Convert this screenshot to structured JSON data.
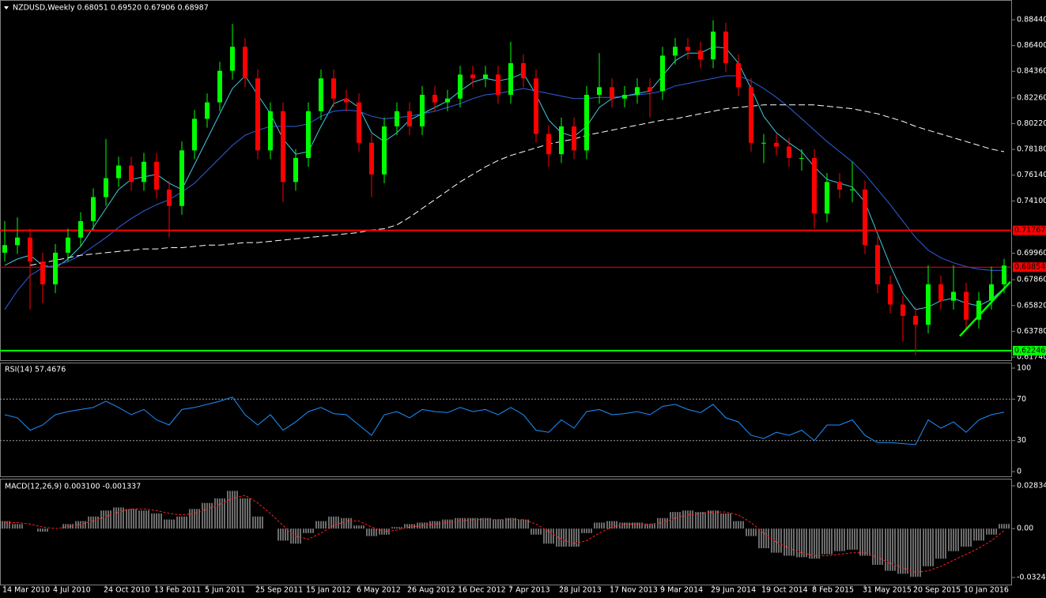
{
  "chart_data": [
    {
      "type": "candlestick",
      "title": "NZDUSD,Weekly  0.68051 0.69520 0.67906 0.68987",
      "categories": [
        "14 Mar 2010",
        null,
        null,
        null,
        "4 Jul 2010",
        null,
        null,
        null,
        "24 Oct 2010",
        null,
        null,
        null,
        "13 Feb 2011",
        null,
        null,
        null,
        "5 Jun 2011",
        null,
        null,
        null,
        "25 Sep 2011",
        null,
        null,
        null,
        "15 Jan 2012",
        null,
        null,
        null,
        "6 May 2012",
        null,
        null,
        null,
        "26 Aug 2012",
        null,
        null,
        null,
        "16 Dec 2012",
        null,
        null,
        null,
        "7 Apr 2013",
        null,
        null,
        null,
        "28 Jul 2013",
        null,
        null,
        null,
        "17 Nov 2013",
        null,
        null,
        null,
        "9 Mar 2014",
        null,
        null,
        null,
        "29 Jun 2014",
        null,
        null,
        null,
        "19 Oct 2014",
        null,
        null,
        null,
        "8 Feb 2015",
        null,
        null,
        null,
        "31 May 2015",
        null,
        null,
        null,
        "20 Sep 2015",
        null,
        null,
        null,
        "10 Jan 2016",
        null,
        null,
        null
      ],
      "open": [
        0.7,
        0.706,
        0.712,
        0.693,
        0.675,
        0.7,
        0.712,
        0.725,
        0.744,
        0.759,
        0.769,
        0.756,
        0.772,
        0.75,
        0.737,
        0.781,
        0.806,
        0.819,
        0.844,
        0.863,
        0.838,
        0.781,
        0.812,
        0.756,
        0.775,
        0.812,
        0.838,
        0.822,
        0.819,
        0.787,
        0.762,
        0.8,
        0.812,
        0.8,
        0.825,
        0.819,
        0.822,
        0.841,
        0.838,
        0.841,
        0.825,
        0.85,
        0.838,
        0.794,
        0.778,
        0.8,
        0.781,
        0.825,
        0.831,
        0.822,
        0.825,
        0.831,
        0.828,
        0.856,
        0.863,
        0.86,
        0.853,
        0.875,
        0.85,
        0.831,
        0.787,
        0.787,
        0.784,
        0.775,
        0.775,
        0.731,
        0.756,
        0.75,
        0.75,
        0.706,
        0.675,
        0.659,
        0.65,
        0.643,
        0.675,
        0.662,
        0.669,
        0.647,
        0.662,
        0.675
      ],
      "high": [
        0.725,
        0.728,
        0.719,
        0.7,
        0.707,
        0.719,
        0.732,
        0.751,
        0.79,
        0.776,
        0.776,
        0.779,
        0.779,
        0.757,
        0.788,
        0.813,
        0.826,
        0.851,
        0.881,
        0.87,
        0.845,
        0.819,
        0.819,
        0.782,
        0.819,
        0.845,
        0.845,
        0.829,
        0.826,
        0.794,
        0.807,
        0.819,
        0.819,
        0.832,
        0.832,
        0.829,
        0.848,
        0.848,
        0.848,
        0.848,
        0.867,
        0.857,
        0.845,
        0.801,
        0.807,
        0.807,
        0.832,
        0.858,
        0.838,
        0.832,
        0.838,
        0.838,
        0.863,
        0.87,
        0.87,
        0.867,
        0.884,
        0.882,
        0.857,
        0.838,
        0.794,
        0.794,
        0.791,
        0.782,
        0.782,
        0.763,
        0.763,
        0.772,
        0.757,
        0.713,
        0.682,
        0.666,
        0.657,
        0.69,
        0.682,
        0.69,
        0.676,
        0.669,
        0.689,
        0.6952
      ],
      "low": [
        0.693,
        0.699,
        0.655,
        0.66,
        0.668,
        0.693,
        0.705,
        0.718,
        0.737,
        0.752,
        0.749,
        0.749,
        0.743,
        0.712,
        0.73,
        0.774,
        0.799,
        0.812,
        0.837,
        0.831,
        0.774,
        0.774,
        0.74,
        0.749,
        0.768,
        0.805,
        0.815,
        0.812,
        0.78,
        0.744,
        0.755,
        0.793,
        0.793,
        0.793,
        0.812,
        0.812,
        0.815,
        0.831,
        0.831,
        0.818,
        0.818,
        0.831,
        0.787,
        0.768,
        0.771,
        0.774,
        0.774,
        0.818,
        0.815,
        0.815,
        0.818,
        0.807,
        0.821,
        0.849,
        0.853,
        0.846,
        0.846,
        0.843,
        0.824,
        0.78,
        0.771,
        0.777,
        0.768,
        0.765,
        0.719,
        0.724,
        0.743,
        0.74,
        0.699,
        0.668,
        0.652,
        0.63,
        0.619,
        0.636,
        0.655,
        0.655,
        0.64,
        0.64,
        0.655,
        0.668
      ],
      "close": [
        0.706,
        0.712,
        0.693,
        0.675,
        0.7,
        0.712,
        0.725,
        0.744,
        0.759,
        0.769,
        0.756,
        0.772,
        0.75,
        0.737,
        0.781,
        0.806,
        0.819,
        0.844,
        0.863,
        0.838,
        0.781,
        0.812,
        0.756,
        0.775,
        0.812,
        0.838,
        0.822,
        0.819,
        0.787,
        0.762,
        0.8,
        0.812,
        0.8,
        0.825,
        0.819,
        0.822,
        0.841,
        0.838,
        0.841,
        0.825,
        0.85,
        0.838,
        0.794,
        0.778,
        0.8,
        0.781,
        0.825,
        0.831,
        0.822,
        0.825,
        0.831,
        0.828,
        0.856,
        0.863,
        0.86,
        0.853,
        0.875,
        0.85,
        0.831,
        0.787,
        0.787,
        0.784,
        0.775,
        0.775,
        0.731,
        0.756,
        0.75,
        0.75,
        0.706,
        0.675,
        0.659,
        0.65,
        0.643,
        0.675,
        0.662,
        0.669,
        0.647,
        0.662,
        0.675,
        0.68987
      ],
      "up_color": "#00ff00",
      "down_color": "#ff0000",
      "lines": [
        {
          "color": "#40c8e0",
          "dashed": false,
          "values": [
            0.69,
            0.695,
            0.698,
            0.69,
            0.688,
            0.695,
            0.705,
            0.72,
            0.735,
            0.75,
            0.758,
            0.76,
            0.762,
            0.755,
            0.75,
            0.77,
            0.79,
            0.81,
            0.83,
            0.84,
            0.825,
            0.81,
            0.79,
            0.778,
            0.78,
            0.8,
            0.818,
            0.822,
            0.815,
            0.795,
            0.788,
            0.795,
            0.805,
            0.81,
            0.815,
            0.82,
            0.828,
            0.835,
            0.838,
            0.836,
            0.838,
            0.842,
            0.825,
            0.805,
            0.795,
            0.792,
            0.8,
            0.815,
            0.822,
            0.824,
            0.826,
            0.828,
            0.84,
            0.852,
            0.858,
            0.858,
            0.863,
            0.862,
            0.85,
            0.83,
            0.808,
            0.795,
            0.787,
            0.78,
            0.768,
            0.758,
            0.755,
            0.752,
            0.74,
            0.715,
            0.69,
            0.668,
            0.655,
            0.657,
            0.662,
            0.664,
            0.66,
            0.658,
            0.663,
            0.672
          ]
        },
        {
          "color": "#3060e0",
          "dashed": false,
          "values": [
            0.655,
            0.67,
            0.682,
            0.688,
            0.69,
            0.693,
            0.698,
            0.705,
            0.712,
            0.72,
            0.727,
            0.733,
            0.738,
            0.742,
            0.748,
            0.755,
            0.765,
            0.775,
            0.785,
            0.793,
            0.797,
            0.8,
            0.8,
            0.8,
            0.802,
            0.808,
            0.812,
            0.813,
            0.812,
            0.808,
            0.806,
            0.807,
            0.808,
            0.81,
            0.812,
            0.815,
            0.818,
            0.822,
            0.825,
            0.826,
            0.828,
            0.83,
            0.828,
            0.826,
            0.824,
            0.822,
            0.822,
            0.823,
            0.823,
            0.824,
            0.825,
            0.826,
            0.828,
            0.832,
            0.834,
            0.836,
            0.838,
            0.84,
            0.84,
            0.836,
            0.83,
            0.823,
            0.815,
            0.806,
            0.797,
            0.788,
            0.78,
            0.772,
            0.762,
            0.75,
            0.738,
            0.725,
            0.712,
            0.702,
            0.696,
            0.692,
            0.689,
            0.687,
            0.686,
            0.686
          ]
        },
        {
          "color": "#ffffff",
          "dashed": true,
          "values": [
            null,
            null,
            0.69,
            0.692,
            0.694,
            0.696,
            0.698,
            0.699,
            0.7,
            0.701,
            0.702,
            0.703,
            0.703,
            0.704,
            0.704,
            0.705,
            0.706,
            0.706,
            0.707,
            0.708,
            0.708,
            0.709,
            0.71,
            0.711,
            0.712,
            0.713,
            0.714,
            0.715,
            0.716,
            0.718,
            0.719,
            0.722,
            0.728,
            0.735,
            0.742,
            0.749,
            0.756,
            0.762,
            0.768,
            0.773,
            0.777,
            0.78,
            0.783,
            0.786,
            0.788,
            0.79,
            0.793,
            0.795,
            0.797,
            0.799,
            0.801,
            0.803,
            0.805,
            0.806,
            0.808,
            0.81,
            0.812,
            0.814,
            0.815,
            0.816,
            0.817,
            0.817,
            0.817,
            0.817,
            0.817,
            0.816,
            0.815,
            0.814,
            0.812,
            0.81,
            0.807,
            0.804,
            0.8,
            0.797,
            0.794,
            0.791,
            0.788,
            0.785,
            0.782,
            0.78
          ]
        }
      ],
      "hlines": [
        {
          "value": 0.71767,
          "label": "0.71767",
          "color": "#ff0000",
          "width": 2
        },
        {
          "value": 0.68854,
          "label": "0.68854",
          "color": "#ff0000",
          "width": 1
        },
        {
          "value": 0.62246,
          "label": "0.62246",
          "color": "#00ff00",
          "width": 2
        }
      ],
      "trend_line": {
        "values": [
          0.634,
          0.677
        ],
        "color": "#00ff00"
      },
      "ylim": [
        0.6174,
        0.8844
      ],
      "yticks": [
        {
          "value": 0.8844,
          "label": "0.88440"
        },
        {
          "value": 0.864,
          "label": "0.86400"
        },
        {
          "value": 0.8436,
          "label": "0.84360"
        },
        {
          "value": 0.8226,
          "label": "0.82260"
        },
        {
          "value": 0.8022,
          "label": "0.80220"
        },
        {
          "value": 0.7818,
          "label": "0.78180"
        },
        {
          "value": 0.7614,
          "label": "0.76140"
        },
        {
          "value": 0.741,
          "label": "0.74100"
        },
        {
          "value": 0.6996,
          "label": "0.69960"
        },
        {
          "value": 0.6786,
          "label": "0.67860"
        },
        {
          "value": 0.6582,
          "label": "0.65820"
        },
        {
          "value": 0.6378,
          "label": "0.63780"
        },
        {
          "value": 0.6174,
          "label": "0.61740"
        }
      ],
      "grid": false
    },
    {
      "type": "line",
      "title": "RSI(14) 57.4676",
      "color": "#1e90ff",
      "values": [
        55,
        52,
        40,
        45,
        55,
        58,
        60,
        62,
        68,
        62,
        55,
        60,
        50,
        45,
        60,
        62,
        65,
        68,
        72,
        55,
        45,
        55,
        40,
        48,
        58,
        62,
        56,
        55,
        45,
        35,
        55,
        58,
        52,
        60,
        58,
        57,
        62,
        58,
        60,
        55,
        62,
        55,
        40,
        38,
        50,
        42,
        58,
        60,
        55,
        56,
        58,
        55,
        63,
        65,
        60,
        57,
        65,
        52,
        48,
        35,
        32,
        38,
        35,
        40,
        30,
        45,
        45,
        50,
        35,
        28,
        28,
        27,
        26,
        50,
        42,
        48,
        38,
        50,
        55,
        57.4676
      ],
      "levels": [
        70,
        30
      ],
      "ylim": [
        0,
        100
      ],
      "yticks": [
        100,
        70,
        30,
        0
      ]
    },
    {
      "type": "macd",
      "title": "MACD(12,26,9) 0.003100 -0.001337",
      "hist_color": "#d8d8d8",
      "signal_color": "#ff2020",
      "values": [
        0.005,
        0.003,
        0.0,
        -0.002,
        0.0,
        0.003,
        0.005,
        0.008,
        0.012,
        0.014,
        0.013,
        0.012,
        0.01,
        0.006,
        0.008,
        0.013,
        0.017,
        0.02,
        0.025,
        0.02,
        0.008,
        0.0,
        -0.008,
        -0.01,
        -0.003,
        0.005,
        0.008,
        0.007,
        0.002,
        -0.005,
        -0.004,
        0.001,
        0.003,
        0.004,
        0.005,
        0.006,
        0.007,
        0.007,
        0.007,
        0.006,
        0.007,
        0.006,
        -0.004,
        -0.01,
        -0.012,
        -0.012,
        -0.003,
        0.004,
        0.005,
        0.004,
        0.004,
        0.003,
        0.007,
        0.011,
        0.012,
        0.011,
        0.012,
        0.01,
        0.005,
        -0.005,
        -0.013,
        -0.016,
        -0.018,
        -0.019,
        -0.02,
        -0.017,
        -0.015,
        -0.014,
        -0.018,
        -0.024,
        -0.028,
        -0.03,
        -0.032,
        -0.025,
        -0.02,
        -0.015,
        -0.012,
        -0.008,
        -0.004,
        0.0031
      ],
      "signal": [
        0.004,
        0.004,
        0.003,
        0.001,
        0.0,
        0.001,
        0.003,
        0.005,
        0.008,
        0.011,
        0.013,
        0.013,
        0.012,
        0.01,
        0.009,
        0.01,
        0.013,
        0.016,
        0.02,
        0.022,
        0.017,
        0.01,
        0.002,
        -0.005,
        -0.007,
        -0.003,
        0.002,
        0.005,
        0.005,
        0.001,
        -0.002,
        -0.001,
        0.001,
        0.002,
        0.003,
        0.004,
        0.005,
        0.006,
        0.006,
        0.006,
        0.006,
        0.006,
        0.003,
        -0.002,
        -0.007,
        -0.01,
        -0.008,
        -0.003,
        0.001,
        0.003,
        0.003,
        0.003,
        0.004,
        0.007,
        0.009,
        0.01,
        0.011,
        0.011,
        0.009,
        0.004,
        -0.003,
        -0.009,
        -0.013,
        -0.016,
        -0.018,
        -0.018,
        -0.017,
        -0.016,
        -0.016,
        -0.019,
        -0.023,
        -0.026,
        -0.029,
        -0.028,
        -0.025,
        -0.021,
        -0.017,
        -0.013,
        -0.008,
        -0.001337
      ],
      "ylim": [
        -0.032407,
        0.028344
      ],
      "yticks": [
        0.028344,
        {
          "value": 0,
          "label": "0.00"
        },
        -0.032407
      ]
    }
  ]
}
